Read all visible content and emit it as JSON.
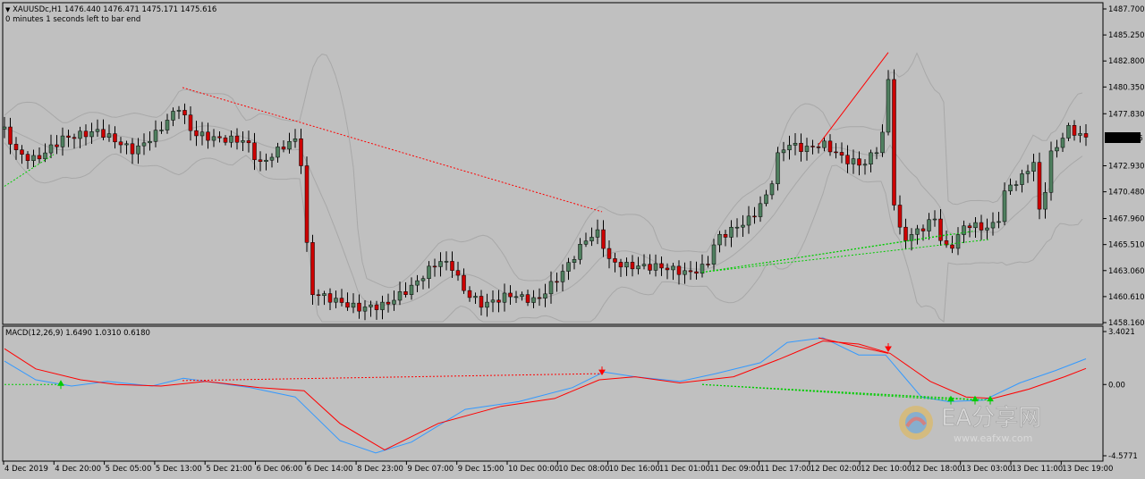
{
  "chart_title": {
    "symbol_line": "XAUUSDc,H1  1476.440 1476.471 1475.171 1475.616",
    "timer": "0 minutes 1 seconds left to bar end"
  },
  "macd_label": "MACD(12,26,9) 1.6490 1.0310 0.6180",
  "watermark": {
    "text": "EA分享网",
    "url": "www.eafxw.com"
  },
  "colors": {
    "background": "#c0c0c0",
    "bull": "#4f7f5f",
    "bear": "#cc0000",
    "signal": "#ff0000",
    "macd": "#3399ff",
    "bands": "#a8a8a8",
    "buy_arrow": "#00cc00",
    "sell_arrow": "#ff0000"
  },
  "chart_data": [
    {
      "type": "candlestick",
      "price_axis_ticks": [
        "1487.700",
        "1485.250",
        "1482.800",
        "1480.350",
        "1477.830",
        "1475.616",
        "1472.930",
        "1470.480",
        "1467.960",
        "1465.510",
        "1463.060",
        "1460.610",
        "1458.160"
      ],
      "ylim": [
        1458.16,
        1487.7
      ],
      "current_price": "1475.616",
      "time_ticks": [
        "4 Dec 2019",
        "4 Dec 20:00",
        "5 Dec 05:00",
        "5 Dec 13:00",
        "5 Dec 21:00",
        "6 Dec 06:00",
        "6 Dec 14:00",
        "8 Dec 23:00",
        "9 Dec 07:00",
        "9 Dec 15:00",
        "10 Dec 00:00",
        "10 Dec 08:00",
        "10 Dec 16:00",
        "11 Dec 01:00",
        "11 Dec 09:00",
        "11 Dec 17:00",
        "12 Dec 02:00",
        "12 Dec 10:00",
        "12 Dec 18:00",
        "13 Dec 03:00",
        "13 Dec 11:00",
        "13 Dec 19:00"
      ],
      "indicators": [
        "Bollinger Bands"
      ],
      "trendlines": [
        "divergence (red)",
        "divergence (green)"
      ]
    },
    {
      "type": "line",
      "name": "MACD(12,26,9)",
      "values_printed": [
        1.649,
        1.031,
        0.618
      ],
      "axis_ticks": [
        "3.4021",
        "0.00",
        "-4.5771"
      ],
      "ylim": [
        -4.5771,
        3.4021
      ],
      "series": [
        {
          "name": "MACD"
        },
        {
          "name": "Signal"
        }
      ]
    }
  ]
}
